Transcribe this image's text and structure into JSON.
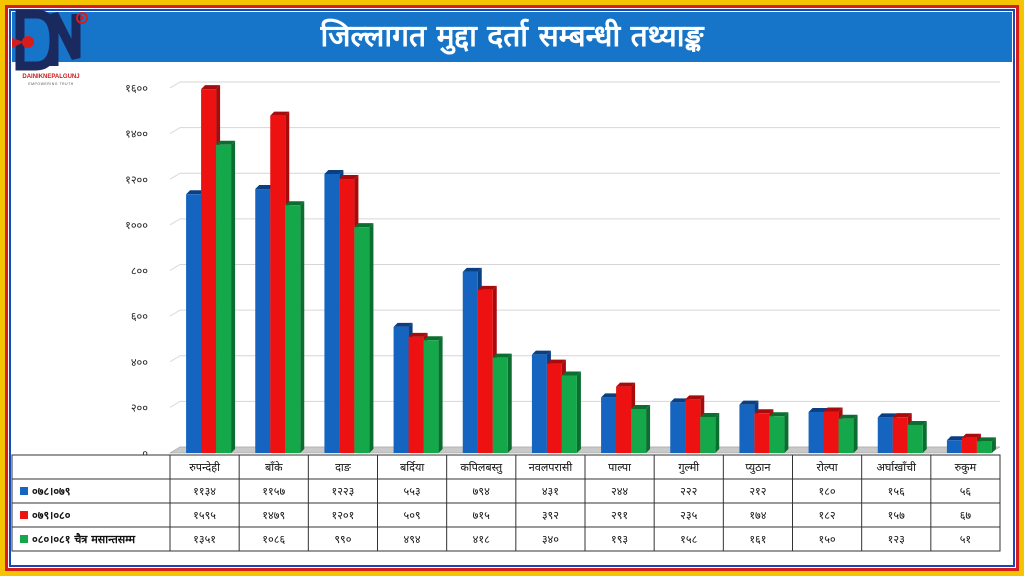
{
  "title": "जिल्लागत मुद्दा दर्ता सम्बन्धी तथ्याङ्क",
  "logo": {
    "text": "DAINIKNEPALGUNJ",
    "tagline": "EMPOWERING TRUTH"
  },
  "colors": {
    "series1": "#1565c0",
    "series2": "#ee1111",
    "series3": "#14a84a",
    "title_bg": "#1674c9"
  },
  "chart_data": {
    "type": "bar",
    "title": "जिल्लागत मुद्दा दर्ता सम्बन्धी तथ्याङ्क",
    "categories": [
      "रुपन्देही",
      "बाँके",
      "दाङ",
      "बर्दिया",
      "कपिलबस्तु",
      "नवलपरासी",
      "पाल्पा",
      "गुल्मी",
      "प्युठान",
      "रोल्पा",
      "अर्घाखाँची",
      "रुकुम"
    ],
    "series": [
      {
        "name": "०७८।०७९",
        "values": [
          1134,
          1157,
          1223,
          553,
          794,
          431,
          244,
          222,
          212,
          180,
          156,
          56
        ],
        "labels": [
          "११३४",
          "११५७",
          "१२२३",
          "५५३",
          "७९४",
          "४३१",
          "२४४",
          "२२२",
          "२१२",
          "१८०",
          "१५६",
          "५६"
        ]
      },
      {
        "name": "०७९।०८०",
        "values": [
          1595,
          1479,
          1201,
          509,
          715,
          392,
          291,
          235,
          174,
          182,
          157,
          67
        ],
        "labels": [
          "१५९५",
          "१४७९",
          "१२०१",
          "५०९",
          "७१५",
          "३९२",
          "२९१",
          "२३५",
          "१७४",
          "१८२",
          "१५७",
          "६७"
        ]
      },
      {
        "name": "०८०।०८१ चैत्र मसान्तसम्म",
        "values": [
          1351,
          1086,
          990,
          494,
          418,
          340,
          193,
          158,
          161,
          150,
          123,
          51
        ],
        "labels": [
          "१३५१",
          "१०८६",
          "९९०",
          "४९४",
          "४१८",
          "३४०",
          "१९३",
          "१५८",
          "१६१",
          "१५०",
          "१२३",
          "५१"
        ]
      }
    ],
    "yticks": [
      "०",
      "२००",
      "४००",
      "६००",
      "८००",
      "१०००",
      "१२००",
      "१४००",
      "१६००"
    ],
    "ylim": [
      0,
      1600
    ],
    "grid": true,
    "legend": "table-bottom"
  }
}
